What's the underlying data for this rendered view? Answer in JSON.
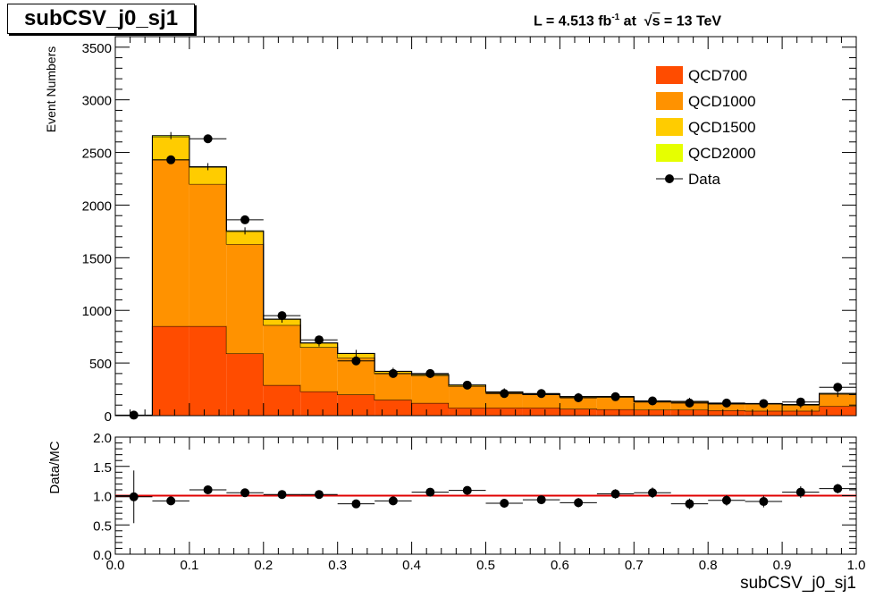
{
  "title": "subCSV_j0_sj1",
  "header": {
    "lumi_prefix": "L = 4.513 fb",
    "lumi_exp": "-1",
    "lumi_mid": " at  ",
    "sqrt_symbol": "√",
    "sqrt_var": "s",
    "energy": " = 13 TeV"
  },
  "colors": {
    "QCD700": "#ff4c00",
    "QCD1000": "#ff9200",
    "QCD1500": "#ffcc00",
    "QCD2000": "#e6ff00",
    "ratio_line": "#e00000"
  },
  "chart_data": [
    {
      "type": "bar",
      "stacked": true,
      "ylabel": "Event Numbers",
      "xlim": [
        0.0,
        1.0
      ],
      "ylim": [
        0,
        3600
      ],
      "yticks": [
        0,
        500,
        1000,
        1500,
        2000,
        2500,
        3000,
        3500
      ],
      "bin_edges": [
        0.0,
        0.05,
        0.1,
        0.15,
        0.2,
        0.25,
        0.3,
        0.35,
        0.4,
        0.45,
        0.5,
        0.55,
        0.6,
        0.65,
        0.7,
        0.75,
        0.8,
        0.85,
        0.9,
        0.95,
        1.0
      ],
      "legend_placement": "top-right",
      "legend": [
        "QCD700",
        "QCD1000",
        "QCD1500",
        "QCD2000",
        "Data"
      ],
      "series": [
        {
          "name": "QCD700",
          "values": [
            0,
            850,
            850,
            590,
            290,
            230,
            200,
            150,
            120,
            75,
            75,
            75,
            65,
            60,
            55,
            55,
            50,
            45,
            45,
            90
          ]
        },
        {
          "name": "QCD1000",
          "values": [
            0,
            1580,
            1350,
            1040,
            570,
            420,
            350,
            250,
            260,
            205,
            145,
            125,
            110,
            115,
            75,
            75,
            60,
            65,
            55,
            115
          ]
        },
        {
          "name": "QCD1500",
          "values": [
            0,
            220,
            160,
            120,
            55,
            40,
            40,
            20,
            10,
            10,
            5,
            5,
            5,
            5,
            5,
            5,
            5,
            5,
            5,
            5
          ]
        },
        {
          "name": "QCD2000",
          "values": [
            0,
            10,
            5,
            5,
            2,
            1,
            1,
            1,
            1,
            1,
            1,
            1,
            1,
            1,
            1,
            1,
            1,
            1,
            1,
            1
          ]
        },
        {
          "name": "Data",
          "type": "scatter",
          "x": [
            0.025,
            0.075,
            0.125,
            0.175,
            0.225,
            0.275,
            0.325,
            0.375,
            0.425,
            0.475,
            0.525,
            0.575,
            0.625,
            0.675,
            0.725,
            0.775,
            0.825,
            0.875,
            0.925,
            0.975
          ],
          "values": [
            5,
            2430,
            2630,
            1860,
            950,
            720,
            520,
            400,
            400,
            290,
            210,
            210,
            170,
            180,
            140,
            120,
            120,
            115,
            130,
            270
          ]
        }
      ]
    },
    {
      "type": "scatter",
      "ylabel": "Data/MC",
      "xlabel": "subCSV_j0_sj1",
      "xlim": [
        0.0,
        1.0
      ],
      "ylim": [
        0.0,
        2.0
      ],
      "yticks": [
        0.0,
        0.5,
        1.0,
        1.5,
        2.0
      ],
      "xticks": [
        0.0,
        0.1,
        0.2,
        0.3,
        0.4,
        0.5,
        0.6,
        0.7,
        0.8,
        0.9,
        1.0
      ],
      "reference_line": 1.0,
      "x": [
        0.025,
        0.075,
        0.125,
        0.175,
        0.225,
        0.275,
        0.325,
        0.375,
        0.425,
        0.475,
        0.525,
        0.575,
        0.625,
        0.675,
        0.725,
        0.775,
        0.825,
        0.875,
        0.925,
        0.975
      ],
      "values": [
        0.98,
        0.91,
        1.1,
        1.05,
        1.02,
        1.02,
        0.86,
        0.91,
        1.06,
        1.09,
        0.87,
        0.93,
        0.88,
        1.03,
        1.05,
        0.86,
        0.92,
        0.9,
        1.06,
        1.12
      ],
      "errors": [
        0.45,
        0.02,
        0.02,
        0.03,
        0.04,
        0.05,
        0.05,
        0.05,
        0.06,
        0.07,
        0.07,
        0.07,
        0.08,
        0.08,
        0.09,
        0.09,
        0.09,
        0.1,
        0.1,
        0.08
      ]
    }
  ]
}
